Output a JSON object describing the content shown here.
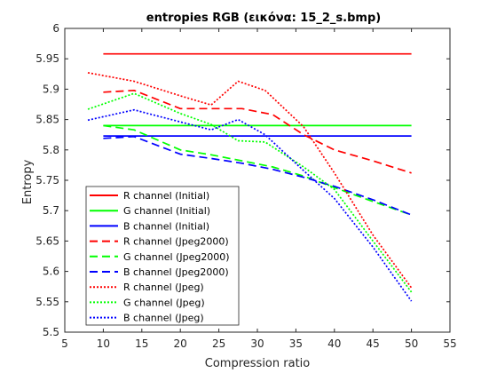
{
  "chart_data": {
    "type": "line",
    "title": "entropies RGB (εικόνα: 15_2_s.bmp)",
    "xlabel": "Compression ratio",
    "ylabel": "Entropy",
    "xlim": [
      5,
      55
    ],
    "ylim": [
      5.5,
      6.0
    ],
    "xticks": [
      "5",
      "10",
      "15",
      "20",
      "25",
      "30",
      "35",
      "40",
      "45",
      "50",
      "55"
    ],
    "yticks": [
      "5.5",
      "5.55",
      "5.6",
      "5.65",
      "5.7",
      "5.75",
      "5.8",
      "5.85",
      "5.9",
      "5.95",
      "6"
    ],
    "grid": false,
    "legend_position": "bottom-left",
    "series": [
      {
        "name": "R channel (Initial)",
        "color": "#ff0000",
        "style": "solid",
        "x": [
          10,
          50
        ],
        "y": [
          5.958,
          5.958
        ]
      },
      {
        "name": "G channel (Initial)",
        "color": "#00ff00",
        "style": "solid",
        "x": [
          10,
          50
        ],
        "y": [
          5.84,
          5.84
        ]
      },
      {
        "name": "B channel (Initial)",
        "color": "#0000ff",
        "style": "solid",
        "x": [
          10,
          50
        ],
        "y": [
          5.823,
          5.823
        ]
      },
      {
        "name": "R channel (Jpeg2000)",
        "color": "#ff0000",
        "style": "dashed",
        "x": [
          10,
          14,
          20,
          24,
          28,
          32,
          36,
          40,
          45,
          50
        ],
        "y": [
          5.895,
          5.898,
          5.868,
          5.868,
          5.868,
          5.858,
          5.825,
          5.8,
          5.782,
          5.762
        ]
      },
      {
        "name": "G channel (Jpeg2000)",
        "color": "#00ff00",
        "style": "dashed",
        "x": [
          10,
          14,
          20,
          24,
          28,
          32,
          36,
          40,
          45,
          50
        ],
        "y": [
          5.84,
          5.833,
          5.8,
          5.792,
          5.782,
          5.772,
          5.757,
          5.738,
          5.715,
          5.693
        ]
      },
      {
        "name": "B channel (Jpeg2000)",
        "color": "#0000ff",
        "style": "dashed",
        "x": [
          10,
          14,
          20,
          24,
          28,
          32,
          36,
          40,
          45,
          50
        ],
        "y": [
          5.819,
          5.822,
          5.793,
          5.786,
          5.778,
          5.768,
          5.755,
          5.74,
          5.718,
          5.693
        ]
      },
      {
        "name": "R channel (Jpeg)",
        "color": "#ff0000",
        "style": "dotted",
        "x": [
          8,
          14,
          20,
          24,
          27.5,
          31,
          36,
          40,
          45,
          50
        ],
        "y": [
          5.927,
          5.913,
          5.889,
          5.874,
          5.913,
          5.898,
          5.838,
          5.762,
          5.66,
          5.573
        ]
      },
      {
        "name": "G channel (Jpeg)",
        "color": "#00ff00",
        "style": "dotted",
        "x": [
          8,
          14,
          20,
          24,
          27.5,
          31,
          36,
          40,
          45,
          50
        ],
        "y": [
          5.867,
          5.893,
          5.86,
          5.842,
          5.815,
          5.813,
          5.772,
          5.735,
          5.65,
          5.566
        ]
      },
      {
        "name": "B channel (Jpeg)",
        "color": "#0000ff",
        "style": "dotted",
        "x": [
          8,
          14,
          20,
          24,
          27.5,
          31,
          36,
          40,
          45,
          50
        ],
        "y": [
          5.849,
          5.866,
          5.846,
          5.833,
          5.85,
          5.825,
          5.766,
          5.72,
          5.64,
          5.551
        ]
      }
    ]
  }
}
